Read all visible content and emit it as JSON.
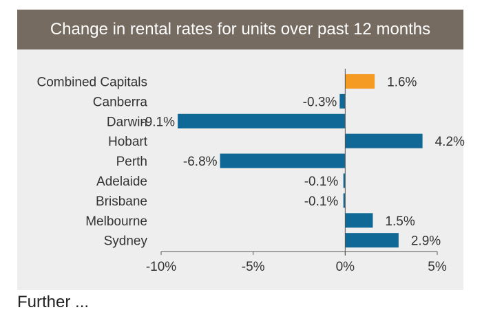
{
  "header": {
    "title": "Change in rental rates for units over past 12 months"
  },
  "footer_text": "Further ... ",
  "colors": {
    "header_bg": "#756b60",
    "panel_bg": "#eeeeee",
    "bar_default": "#0f6896",
    "bar_highlight": "#f59a23",
    "axis": "#555555"
  },
  "chart_data": {
    "type": "bar",
    "orientation": "horizontal",
    "title": "Change in rental rates for units over past 12 months",
    "categories": [
      "Combined Capitals",
      "Canberra",
      "Darwin",
      "Hobart",
      "Perth",
      "Adelaide",
      "Brisbane",
      "Melbourne",
      "Sydney"
    ],
    "values": [
      1.6,
      -0.3,
      -9.1,
      4.2,
      -6.8,
      -0.1,
      -0.1,
      1.5,
      2.9
    ],
    "data_labels": [
      "1.6%",
      "-0.3%",
      "-9.1%",
      "4.2%",
      "-6.8%",
      "-0.1%",
      "-0.1%",
      "1.5%",
      "2.9%"
    ],
    "highlight_category": "Combined Capitals",
    "xlim": [
      -10,
      5
    ],
    "x_ticks": [
      -10,
      -5,
      0,
      5
    ],
    "x_tick_labels": [
      "-10%",
      "-5%",
      "0%",
      "5%"
    ],
    "xlabel": "",
    "ylabel": "",
    "grid": false,
    "legend": "none"
  }
}
